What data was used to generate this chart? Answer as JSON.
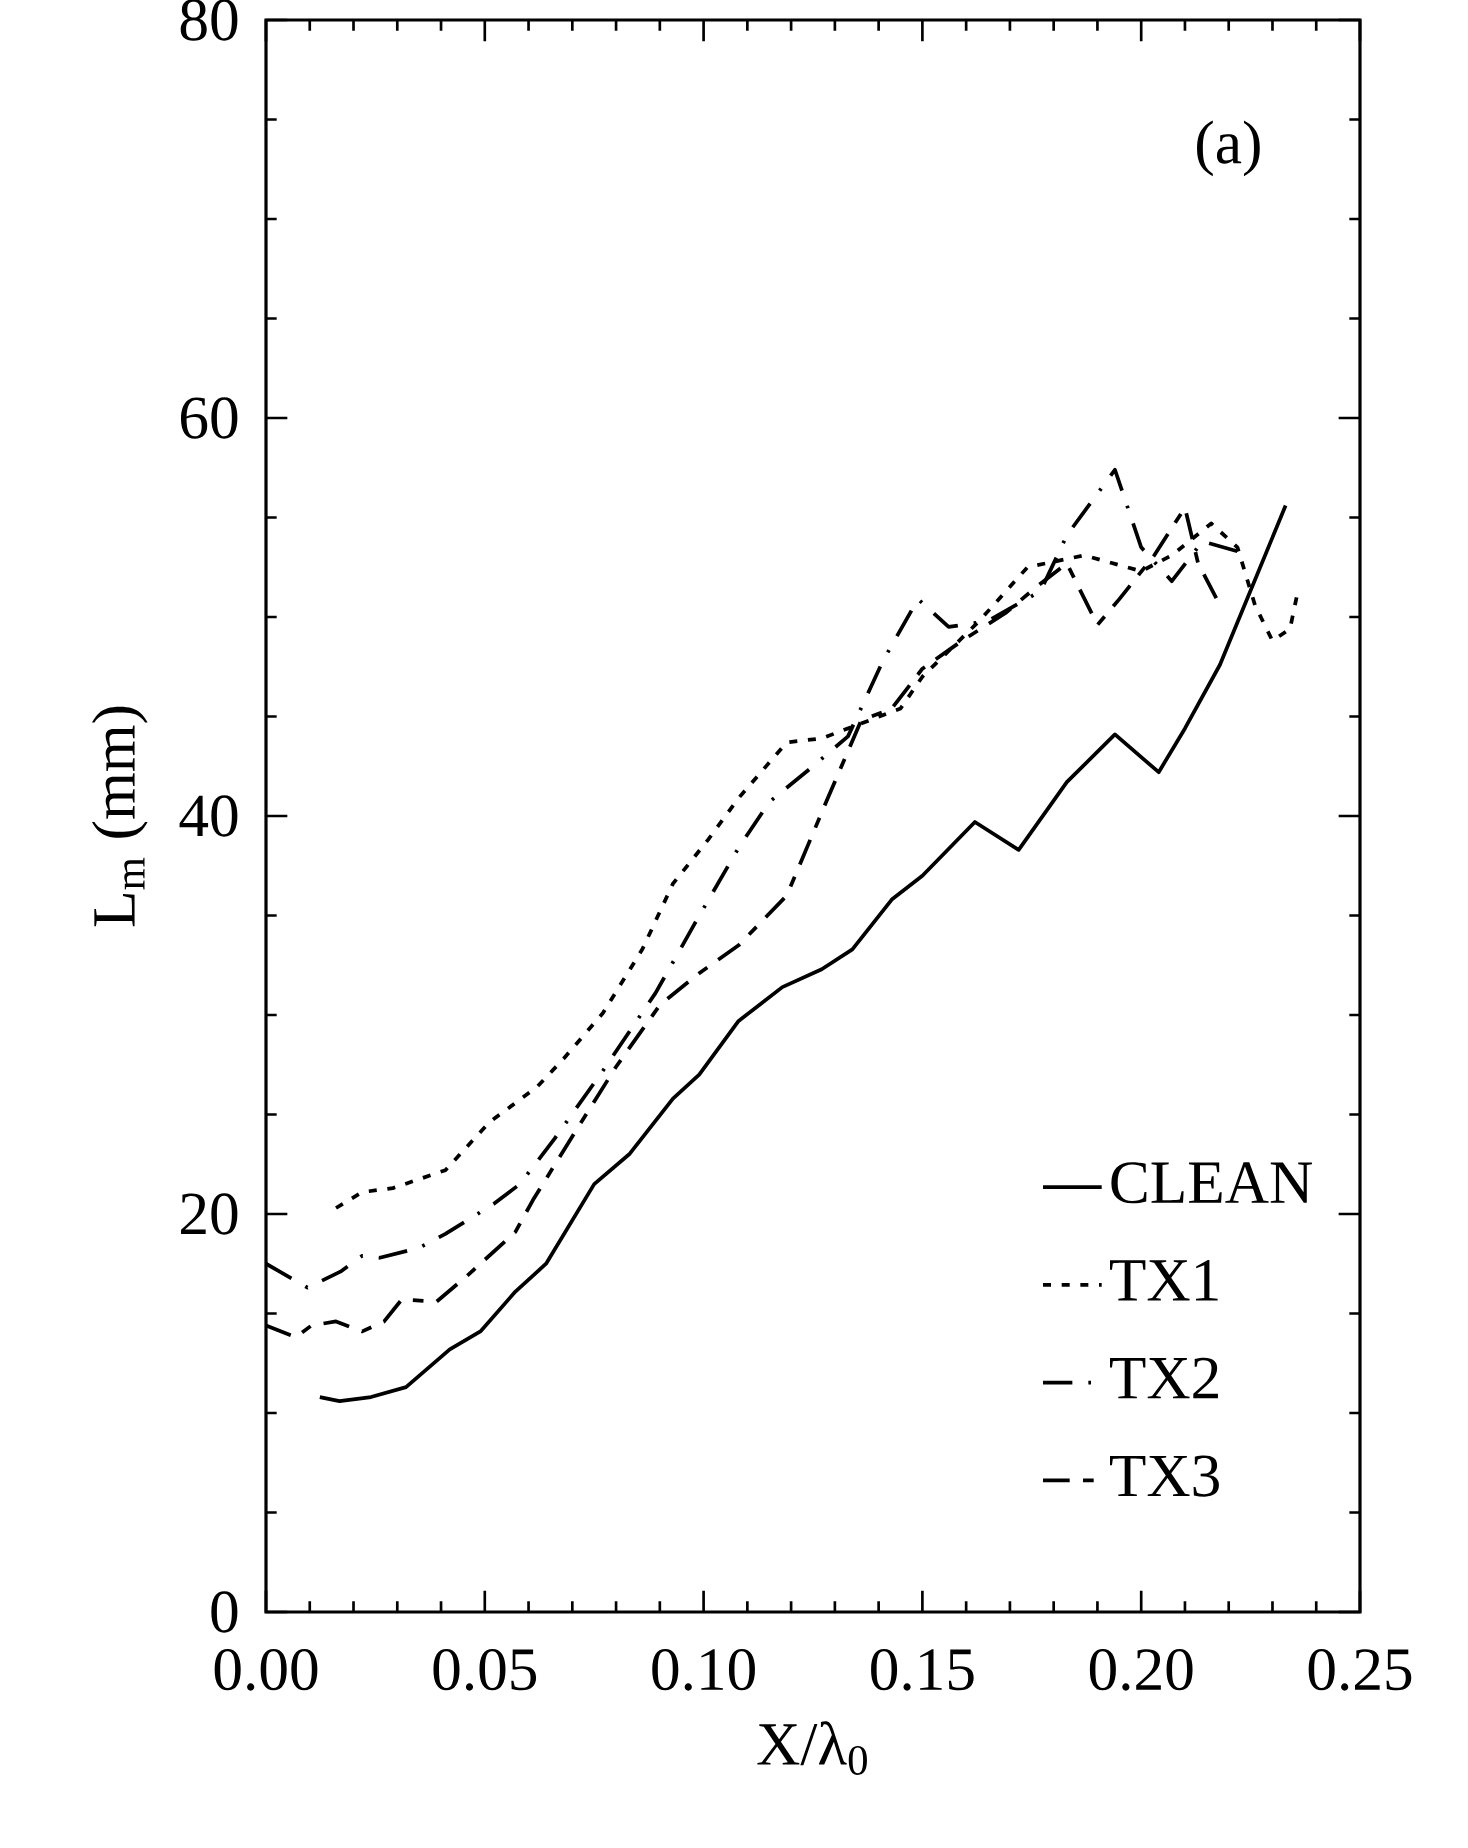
{
  "chart_data": {
    "type": "line",
    "xlabel": "X/λ$_{0}$",
    "ylabel": "L$_{m}$ (mm)",
    "annotations": [
      "(a)"
    ],
    "xlim": [
      0,
      0.25
    ],
    "ylim": [
      0,
      80
    ],
    "xticks": [
      {
        "value": 0,
        "label": "0.00"
      },
      {
        "value": 0.05,
        "label": "0.05"
      },
      {
        "value": 0.1,
        "label": "0.10"
      },
      {
        "value": 0.15,
        "label": "0.15"
      },
      {
        "value": 0.2,
        "label": "0.20"
      },
      {
        "value": 0.25,
        "label": "0.25"
      }
    ],
    "yticks": [
      0,
      20,
      40,
      60,
      80
    ],
    "grid": false,
    "legend": "bottom right",
    "marker": "none",
    "series": [
      {
        "name": "CLEAN",
        "color": "#000000",
        "line_style": "solid",
        "x": [
          0.0123,
          0.0168,
          0.024,
          0.032,
          0.042,
          0.049,
          0.057,
          0.064,
          0.075,
          0.083,
          0.093,
          0.099,
          0.108,
          0.118,
          0.127,
          0.134,
          0.143,
          0.15,
          0.162,
          0.172,
          0.183,
          0.194,
          0.204,
          0.21,
          0.218,
          0.233
        ],
        "values": [
          10.8,
          10.6,
          10.8,
          11.3,
          13.2,
          14.1,
          16.1,
          17.5,
          21.5,
          23.0,
          25.8,
          27.0,
          29.7,
          31.4,
          32.3,
          33.3,
          35.8,
          37.0,
          39.7,
          38.3,
          41.7,
          44.1,
          42.2,
          44.4,
          47.6,
          55.6
        ]
      },
      {
        "name": "TX1",
        "color": "#000000",
        "line_style": "dotted",
        "x": [
          0.016,
          0.022,
          0.029,
          0.041,
          0.051,
          0.062,
          0.068,
          0.077,
          0.086,
          0.093,
          0.101,
          0.108,
          0.119,
          0.127,
          0.145,
          0.15,
          0.163,
          0.174,
          0.187,
          0.2,
          0.207,
          0.216,
          0.222,
          0.226,
          0.23,
          0.234,
          0.236
        ],
        "values": [
          20.3,
          21.1,
          21.3,
          22.2,
          24.6,
          26.4,
          27.8,
          30.1,
          33.3,
          36.6,
          38.8,
          40.9,
          43.7,
          43.9,
          45.4,
          47.0,
          49.8,
          52.5,
          53.1,
          52.3,
          53.1,
          54.7,
          53.5,
          50.6,
          48.8,
          49.4,
          51.5
        ]
      },
      {
        "name": "TX2",
        "color": "#000000",
        "line_style": "dashed",
        "x": [
          0,
          0.0095,
          0.017,
          0.022,
          0.026,
          0.035,
          0.041,
          0.052,
          0.058,
          0.066,
          0.077,
          0.089,
          0.098,
          0.108,
          0.115,
          0.125,
          0.133,
          0.141,
          0.149,
          0.156,
          0.165,
          0.177,
          0.183,
          0.194,
          0.2,
          0.207,
          0.214,
          0.222
        ],
        "values": [
          17.5,
          16.3,
          17.1,
          17.9,
          17.8,
          18.3,
          19.0,
          20.5,
          21.5,
          23.8,
          27.2,
          31.1,
          34.6,
          38.4,
          40.7,
          42.5,
          44.0,
          47.8,
          50.9,
          49.5,
          49.8,
          51.3,
          54.1,
          57.4,
          53.5,
          51.8,
          53.8,
          53.3
        ]
      },
      {
        "name": "TX3",
        "color": "#000000",
        "line_style": "dashdot",
        "x": [
          0,
          0.0068,
          0.0104,
          0.016,
          0.022,
          0.027,
          0.031,
          0.039,
          0.046,
          0.057,
          0.061,
          0.072,
          0.08,
          0.09,
          0.099,
          0.108,
          0.119,
          0.128,
          0.136,
          0.143,
          0.15,
          0.159,
          0.169,
          0.176,
          0.183,
          0.19,
          0.195,
          0.203,
          0.21,
          0.213,
          0.218
        ],
        "values": [
          14.4,
          13.8,
          14.4,
          14.6,
          14.1,
          14.6,
          15.7,
          15.6,
          16.9,
          19.1,
          20.7,
          24.6,
          27.4,
          30.5,
          32.1,
          33.5,
          36.0,
          40.7,
          44.8,
          45.4,
          47.4,
          48.8,
          50.2,
          51.5,
          52.7,
          49.6,
          50.9,
          53.1,
          55.5,
          52.7,
          50.6
        ]
      }
    ]
  }
}
